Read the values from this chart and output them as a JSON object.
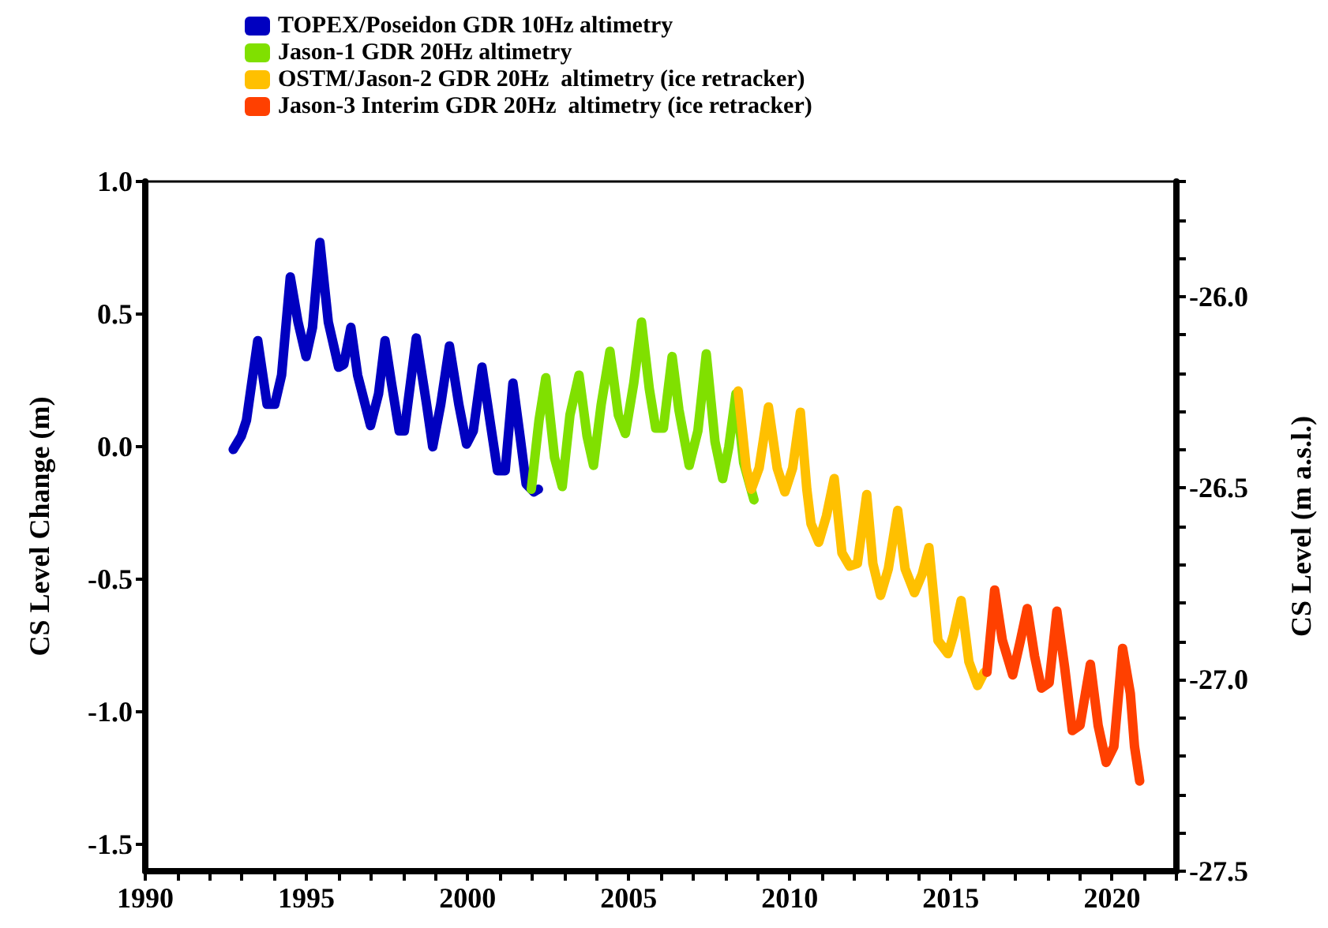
{
  "chart_data": {
    "type": "line",
    "ylabel": "CS Level Change (m)",
    "y2label": "CS Level (m a.s.l.)",
    "legend": "top left",
    "marker": "none",
    "line_style": "solid",
    "grid": false,
    "xlim": [
      1990,
      2022
    ],
    "xticks": [
      1990,
      {
        "value": 1991,
        "label": null
      },
      {
        "value": 1992,
        "label": null
      },
      {
        "value": 1993,
        "label": null
      },
      {
        "value": 1994,
        "label": null
      },
      1995,
      {
        "value": 1996,
        "label": null
      },
      {
        "value": 1997,
        "label": null
      },
      {
        "value": 1998,
        "label": null
      },
      {
        "value": 1999,
        "label": null
      },
      2000,
      {
        "value": 2001,
        "label": null
      },
      {
        "value": 2002,
        "label": null
      },
      {
        "value": 2003,
        "label": null
      },
      {
        "value": 2004,
        "label": null
      },
      2005,
      {
        "value": 2006,
        "label": null
      },
      {
        "value": 2007,
        "label": null
      },
      {
        "value": 2008,
        "label": null
      },
      {
        "value": 2009,
        "label": null
      },
      2010,
      {
        "value": 2011,
        "label": null
      },
      {
        "value": 2012,
        "label": null
      },
      {
        "value": 2013,
        "label": null
      },
      {
        "value": 2014,
        "label": null
      },
      2015,
      {
        "value": 2016,
        "label": null
      },
      {
        "value": 2017,
        "label": null
      },
      {
        "value": 2018,
        "label": null
      },
      {
        "value": 2019,
        "label": null
      },
      2020,
      {
        "value": 2021,
        "label": null
      },
      {
        "value": 2022,
        "label": null
      }
    ],
    "ylim": [
      -1.6,
      1.0
    ],
    "yticks": [
      {
        "value": -1.5,
        "label": "-1.5"
      },
      {
        "value": -1,
        "label": "-1.0"
      },
      {
        "value": -0.5,
        "label": "-0.5"
      },
      {
        "value": 0,
        "label": "0.0"
      },
      {
        "value": 0.5,
        "label": "0.5"
      },
      {
        "value": 1,
        "label": "1.0"
      }
    ],
    "y2lim": [
      -27.5,
      -25.7
    ],
    "y2ticks": [
      {
        "value": -27.5,
        "label": "-27.5"
      },
      {
        "value": -27.4,
        "label": null
      },
      {
        "value": -27.3,
        "label": null
      },
      {
        "value": -27.2,
        "label": null
      },
      {
        "value": -27.1,
        "label": null
      },
      {
        "value": -27,
        "label": "-27.0"
      },
      {
        "value": -26.9,
        "label": null
      },
      {
        "value": -26.8,
        "label": null
      },
      {
        "value": -26.7,
        "label": null
      },
      {
        "value": -26.6,
        "label": null
      },
      {
        "value": -26.5,
        "label": "-26.5"
      },
      {
        "value": -26.4,
        "label": null
      },
      {
        "value": -26.3,
        "label": null
      },
      {
        "value": -26.2,
        "label": null
      },
      {
        "value": -26.1,
        "label": null
      },
      {
        "value": -26,
        "label": "-26.0"
      },
      {
        "value": -25.9,
        "label": null
      },
      {
        "value": -25.8,
        "label": null
      },
      {
        "value": -25.7,
        "label": null
      }
    ],
    "series": [
      {
        "name": "TOPEX/Poseidon GDR 10Hz altimetry",
        "color": "#0000c0",
        "x": [
          1992.73,
          1992.98,
          1993.14,
          1993.49,
          1993.78,
          1994.02,
          1994.23,
          1994.5,
          1994.74,
          1994.99,
          1995.19,
          1995.42,
          1995.68,
          1996.0,
          1996.16,
          1996.38,
          1996.59,
          1996.99,
          1997.24,
          1997.44,
          1997.64,
          1997.88,
          1998.04,
          1998.41,
          1998.73,
          1998.92,
          1999.17,
          1999.44,
          1999.73,
          1999.97,
          2000.18,
          2000.45,
          2000.72,
          2000.93,
          2001.17,
          2001.41,
          2001.63,
          2001.82,
          2002.06,
          2002.2
        ],
        "values": [
          -0.01,
          0.04,
          0.1,
          0.4,
          0.16,
          0.16,
          0.27,
          0.64,
          0.47,
          0.34,
          0.45,
          0.77,
          0.47,
          0.3,
          0.31,
          0.45,
          0.27,
          0.08,
          0.2,
          0.4,
          0.24,
          0.06,
          0.06,
          0.41,
          0.16,
          0.0,
          0.16,
          0.38,
          0.16,
          0.01,
          0.06,
          0.3,
          0.08,
          -0.09,
          -0.09,
          0.24,
          0.04,
          -0.14,
          -0.17,
          -0.16
        ]
      },
      {
        "name": "Jason-1 GDR 20Hz altimetry",
        "color": "#80e000",
        "x": [
          2001.98,
          2002.22,
          2002.43,
          2002.7,
          2002.94,
          2003.18,
          2003.46,
          2003.71,
          2003.91,
          2004.15,
          2004.42,
          2004.68,
          2004.9,
          2005.16,
          2005.4,
          2005.64,
          2005.84,
          2006.08,
          2006.35,
          2006.56,
          2006.88,
          2007.15,
          2007.41,
          2007.68,
          2007.92,
          2008.11,
          2008.33,
          2008.57,
          2008.89
        ],
        "values": [
          -0.16,
          0.1,
          0.26,
          -0.04,
          -0.15,
          0.12,
          0.27,
          0.04,
          -0.07,
          0.16,
          0.36,
          0.12,
          0.05,
          0.24,
          0.47,
          0.22,
          0.07,
          0.07,
          0.34,
          0.14,
          -0.07,
          0.06,
          0.35,
          0.02,
          -0.12,
          0.0,
          0.2,
          -0.06,
          -0.2
        ]
      },
      {
        "name": "OSTM/Jason-2 GDR 20Hz  altimetry (ice retracker)",
        "color": "#ffc000",
        "x": [
          2008.4,
          2008.65,
          2008.81,
          2009.05,
          2009.34,
          2009.61,
          2009.85,
          2010.09,
          2010.33,
          2010.53,
          2010.66,
          2010.9,
          2011.14,
          2011.38,
          2011.62,
          2011.86,
          2012.1,
          2012.39,
          2012.58,
          2012.82,
          2013.06,
          2013.35,
          2013.58,
          2013.87,
          2014.11,
          2014.32,
          2014.6,
          2014.91,
          2015.08,
          2015.32,
          2015.56,
          2015.83,
          2016.04
        ],
        "values": [
          0.21,
          -0.08,
          -0.16,
          -0.08,
          0.15,
          -0.08,
          -0.17,
          -0.08,
          0.13,
          -0.16,
          -0.29,
          -0.36,
          -0.26,
          -0.12,
          -0.4,
          -0.45,
          -0.44,
          -0.18,
          -0.44,
          -0.56,
          -0.46,
          -0.24,
          -0.46,
          -0.55,
          -0.48,
          -0.38,
          -0.73,
          -0.78,
          -0.71,
          -0.58,
          -0.81,
          -0.9,
          -0.85
        ]
      },
      {
        "name": "Jason-3 Interim GDR 20Hz  altimetry (ice retracker)",
        "color": "#ff4000",
        "x": [
          2016.12,
          2016.36,
          2016.6,
          2016.92,
          2017.16,
          2017.37,
          2017.6,
          2017.81,
          2018.05,
          2018.29,
          2018.53,
          2018.77,
          2019.01,
          2019.33,
          2019.57,
          2019.82,
          2020.06,
          2020.33,
          2020.57,
          2020.7,
          2020.86
        ],
        "values": [
          -0.85,
          -0.54,
          -0.73,
          -0.86,
          -0.73,
          -0.61,
          -0.79,
          -0.91,
          -0.89,
          -0.62,
          -0.83,
          -1.07,
          -1.05,
          -0.82,
          -1.05,
          -1.19,
          -1.13,
          -0.76,
          -0.93,
          -1.13,
          -1.26
        ]
      }
    ]
  }
}
